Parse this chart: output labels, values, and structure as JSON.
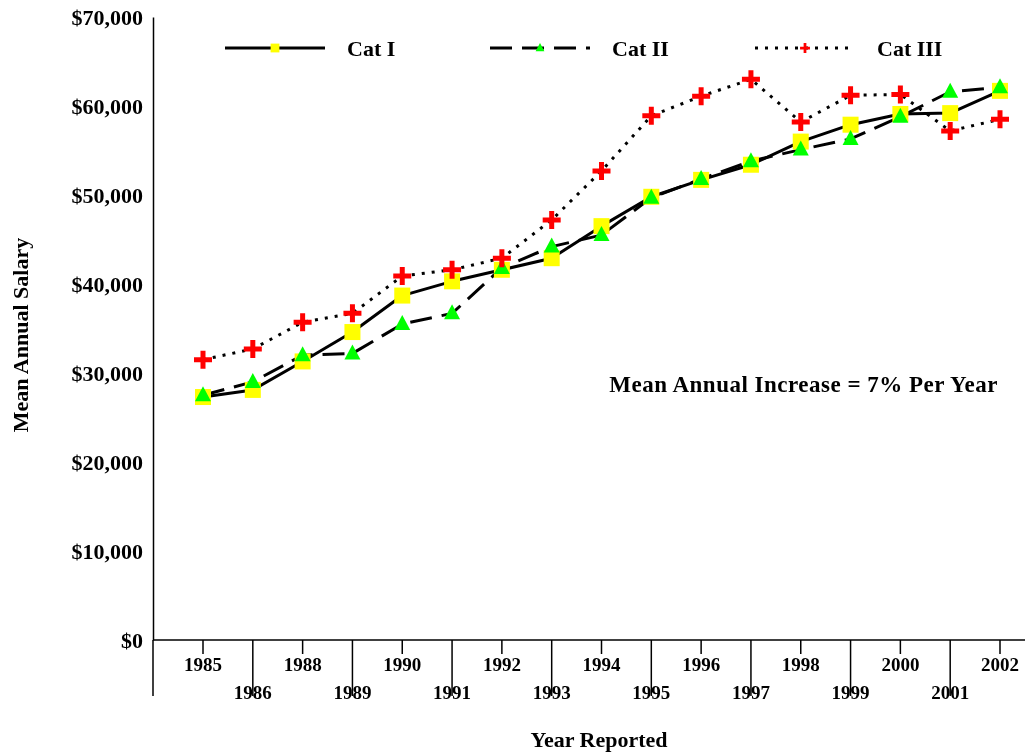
{
  "chart_data": {
    "type": "line",
    "xlabel": "Year Reported",
    "ylabel": "Mean Annual Salary",
    "categories": [
      "1985",
      "1986",
      "1988",
      "1989",
      "1990",
      "1991",
      "1992",
      "1993",
      "1994",
      "1995",
      "1996",
      "1997",
      "1998",
      "1999",
      "2000",
      "2001",
      "2002"
    ],
    "series": [
      {
        "name": "Cat I",
        "color": "#ffff00",
        "marker": "square",
        "line_style": "solid",
        "values": [
          27300,
          28100,
          31300,
          34600,
          38700,
          40300,
          41600,
          42900,
          46500,
          49800,
          51700,
          53400,
          56000,
          57900,
          59100,
          59200,
          61700
        ]
      },
      {
        "name": "Cat II",
        "color": "#00ff00",
        "marker": "triangle",
        "line_style": "dashed",
        "values": [
          27500,
          29000,
          32000,
          32200,
          35500,
          36700,
          41800,
          44200,
          45500,
          49700,
          51800,
          53800,
          55100,
          56300,
          58800,
          61600,
          62100
        ]
      },
      {
        "name": "Cat III",
        "color": "#ff0000",
        "marker": "cross",
        "line_style": "dotted",
        "values": [
          31500,
          32700,
          35700,
          36700,
          40900,
          41600,
          42900,
          47200,
          52700,
          58900,
          61100,
          63000,
          58200,
          61200,
          61300,
          57200,
          58500
        ]
      }
    ],
    "ylim": [
      0,
      70000
    ],
    "yticks": [
      {
        "value": 0,
        "label": "$0"
      },
      {
        "value": 10000,
        "label": "$10,000"
      },
      {
        "value": 20000,
        "label": "$20,000"
      },
      {
        "value": 30000,
        "label": "$30,000"
      },
      {
        "value": 40000,
        "label": "$40,000"
      },
      {
        "value": 50000,
        "label": "$50,000"
      },
      {
        "value": 60000,
        "label": "$60,000"
      },
      {
        "value": 70000,
        "label": "$70,000"
      }
    ],
    "grid": false,
    "legend": "top",
    "annotations": [
      "Mean Annual Increase = 7% Per Year"
    ]
  }
}
